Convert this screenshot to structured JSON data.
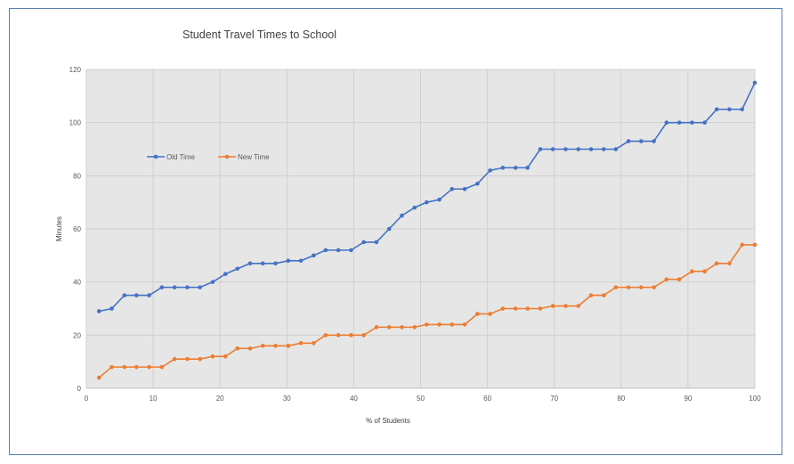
{
  "chart_data": {
    "type": "line",
    "title": "Student Travel Times to School",
    "xlabel": "% of Students",
    "ylabel": "Minutes",
    "xlim": [
      0,
      100
    ],
    "ylim": [
      0,
      120
    ],
    "xticks": [
      "0",
      "10",
      "20",
      "30",
      "40",
      "50",
      "60",
      "70",
      "80",
      "90",
      "100"
    ],
    "yticks": [
      "0",
      "20",
      "40",
      "60",
      "80",
      "100",
      "120"
    ],
    "grid": true,
    "legend": "left",
    "x": [
      1.9,
      3.8,
      5.7,
      7.5,
      9.4,
      11.3,
      13.2,
      15.1,
      17,
      18.9,
      20.8,
      22.6,
      24.5,
      26.4,
      28.3,
      30.2,
      32.1,
      34,
      35.8,
      37.7,
      39.6,
      41.5,
      43.4,
      45.3,
      47.2,
      49.1,
      50.9,
      52.8,
      54.7,
      56.6,
      58.5,
      60.4,
      62.3,
      64.2,
      66,
      67.9,
      69.8,
      71.7,
      73.6,
      75.5,
      77.4,
      79.2,
      81.1,
      83,
      84.9,
      86.8,
      88.7,
      90.6,
      92.5,
      94.3,
      96.2,
      98.1,
      100
    ],
    "series": [
      {
        "name": "Old Time",
        "color": "#4472c4",
        "values": [
          29,
          30,
          35,
          35,
          35,
          38,
          38,
          38,
          38,
          40,
          43,
          45,
          47,
          47,
          47,
          48,
          48,
          50,
          52,
          52,
          52,
          55,
          55,
          60,
          65,
          68,
          70,
          71,
          75,
          75,
          77,
          82,
          83,
          83,
          83,
          90,
          90,
          90,
          90,
          90,
          90,
          90,
          93,
          93,
          93,
          100,
          100,
          100,
          100,
          105,
          105,
          105,
          115
        ]
      },
      {
        "name": "New Time",
        "color": "#ed7d31",
        "values": [
          4,
          8,
          8,
          8,
          8,
          8,
          11,
          11,
          11,
          12,
          12,
          15,
          15,
          16,
          16,
          16,
          17,
          17,
          20,
          20,
          20,
          20,
          23,
          23,
          23,
          23,
          24,
          24,
          24,
          24,
          28,
          28,
          30,
          30,
          30,
          30,
          31,
          31,
          31,
          35,
          35,
          38,
          38,
          38,
          38,
          41,
          41,
          44,
          44,
          47,
          47,
          54,
          54
        ]
      }
    ]
  }
}
